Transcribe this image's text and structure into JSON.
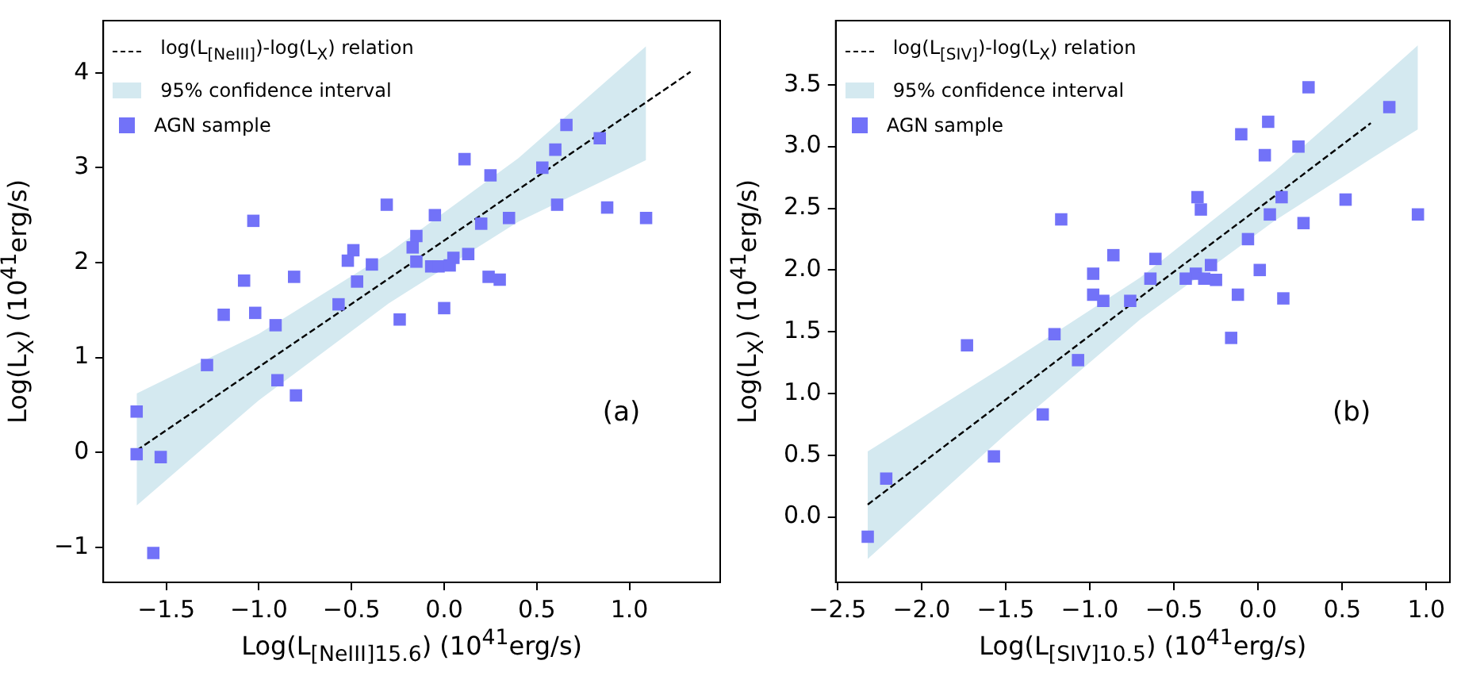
{
  "chart_data": [
    {
      "type": "scatter",
      "xlabel": "Log(L$_{[NeIII]15.6}$) (10$^{41}$erg/s)",
      "ylabel": "Log(L$_{X}$) (10$^{41}$erg/s)",
      "annotations": [
        "(a)"
      ],
      "xlim": [
        -1.84,
        1.49
      ],
      "ylim": [
        -1.37,
        4.55
      ],
      "xticks": [
        {
          "value": -1.5,
          "label": "−1.5"
        },
        {
          "value": -1.0,
          "label": "−1.0"
        },
        {
          "value": -0.5,
          "label": "−0.5"
        },
        {
          "value": 0,
          "label": "0.0"
        },
        {
          "value": 0.5,
          "label": "0.5"
        },
        {
          "value": 1.0,
          "label": "1.0"
        }
      ],
      "yticks": [
        {
          "value": -1,
          "label": "−1"
        },
        0,
        1,
        2,
        3,
        4
      ],
      "legend": "top left",
      "marker": "square",
      "series": [
        {
          "name": "log(L$_{[NeIII]}$)-log(L$_{X}$) relation",
          "type": "line",
          "color": "#000000",
          "line_style": "dashed",
          "marker": "none",
          "x": [
            -1.66,
            -1.0,
            -0.3,
            0.4,
            1.09,
            1.33
          ],
          "values": [
            0.02,
            0.9,
            1.83,
            2.77,
            3.69,
            4.01
          ],
          "lower": [
            -0.56,
            0.55,
            1.57,
            2.43,
            3.08,
            null
          ],
          "upper": [
            0.62,
            1.25,
            2.1,
            3.1,
            4.28,
            null
          ]
        },
        {
          "name": "95% confidence interval",
          "type": "area",
          "color": "#d4e9f0"
        },
        {
          "name": "AGN sample",
          "type": "scatter",
          "color": "#7272f8",
          "x": [
            0.66,
            0.84,
            0.6,
            0.53,
            0.11,
            0.25,
            -0.31,
            0.61,
            0.88,
            1.09,
            0.35,
            -1.03,
            -0.05,
            0.2,
            -0.15,
            -0.17,
            -0.49,
            -0.52,
            -0.39,
            -0.15,
            0.13,
            0.05,
            -0.07,
            -0.03,
            0.03,
            0.24,
            0.3,
            -0.81,
            -1.08,
            -0.47,
            -0.57,
            0.0,
            -1.19,
            -1.02,
            -0.91,
            -0.24,
            -1.28,
            -0.9,
            -0.8,
            -1.66,
            -1.66,
            -1.53,
            -1.57
          ],
          "values": [
            3.45,
            3.31,
            3.19,
            3.0,
            3.09,
            2.92,
            2.61,
            2.61,
            2.58,
            2.47,
            2.47,
            2.44,
            2.5,
            2.41,
            2.28,
            2.16,
            2.13,
            2.02,
            1.98,
            2.01,
            2.09,
            2.05,
            1.96,
            1.96,
            1.97,
            1.85,
            1.82,
            1.85,
            1.81,
            1.8,
            1.56,
            1.52,
            1.45,
            1.47,
            1.34,
            1.4,
            0.92,
            0.76,
            0.6,
            0.43,
            -0.02,
            -0.05,
            -1.06
          ]
        }
      ]
    },
    {
      "type": "scatter",
      "xlabel": "Log(L$_{[SIV]10.5}$) (10$^{41}$erg/s)",
      "ylabel": "Log(L$_{X}$) (10$^{41}$erg/s)",
      "annotations": [
        "(b)"
      ],
      "xlim": [
        -2.51,
        1.14
      ],
      "ylim": [
        -0.53,
        4.02
      ],
      "xticks": [
        {
          "value": -2.5,
          "label": "−2.5"
        },
        {
          "value": -2.0,
          "label": "−2.0"
        },
        {
          "value": -1.5,
          "label": "−1.5"
        },
        {
          "value": -1.0,
          "label": "−1.0"
        },
        {
          "value": -0.5,
          "label": "−0.5"
        },
        {
          "value": 0,
          "label": "0.0"
        },
        {
          "value": 0.5,
          "label": "0.5"
        },
        {
          "value": 1.0,
          "label": "1.0"
        }
      ],
      "yticks": [
        {
          "value": 0,
          "label": "0.0"
        },
        0.5,
        {
          "value": 1,
          "label": "1.0"
        },
        1.5,
        {
          "value": 2,
          "label": "2.0"
        },
        2.5,
        {
          "value": 3,
          "label": "3.0"
        },
        3.5
      ],
      "legend": "top left",
      "marker": "square",
      "series": [
        {
          "name": "log(L$_{[SIV]}$)-log(L$_{X}$) relation",
          "type": "line",
          "color": "#000000",
          "line_style": "dashed",
          "marker": "none",
          "x": [
            -2.32,
            -1.5,
            -0.7,
            0.1,
            0.67,
            0.95
          ],
          "values": [
            0.1,
            0.95,
            1.78,
            2.6,
            3.19,
            null
          ],
          "lower": [
            -0.34,
            0.67,
            1.6,
            2.4,
            2.9,
            3.14
          ],
          "upper": [
            0.53,
            1.23,
            1.94,
            2.8,
            3.48,
            3.82
          ]
        },
        {
          "name": "95% confidence interval",
          "type": "area",
          "color": "#d4e9f0"
        },
        {
          "name": "AGN sample",
          "type": "scatter",
          "color": "#7272f8",
          "x": [
            0.3,
            0.78,
            0.06,
            -0.1,
            0.24,
            0.04,
            0.14,
            0.52,
            -0.36,
            -0.34,
            0.07,
            0.95,
            -1.17,
            0.27,
            -0.06,
            -0.86,
            -0.61,
            -0.28,
            -0.98,
            -0.37,
            0.01,
            -0.64,
            -0.43,
            -0.32,
            -0.25,
            -0.98,
            -0.92,
            -0.76,
            -0.12,
            0.15,
            -0.16,
            -1.73,
            -1.21,
            -1.07,
            -1.28,
            -1.57,
            -2.21,
            -2.32
          ],
          "values": [
            3.48,
            3.32,
            3.2,
            3.1,
            3.0,
            2.93,
            2.59,
            2.57,
            2.59,
            2.49,
            2.45,
            2.45,
            2.41,
            2.38,
            2.25,
            2.12,
            2.09,
            2.04,
            1.97,
            1.97,
            2.0,
            1.93,
            1.93,
            1.93,
            1.92,
            1.8,
            1.75,
            1.75,
            1.8,
            1.77,
            1.45,
            1.39,
            1.48,
            1.27,
            0.83,
            0.49,
            0.31,
            -0.16
          ]
        }
      ]
    }
  ]
}
